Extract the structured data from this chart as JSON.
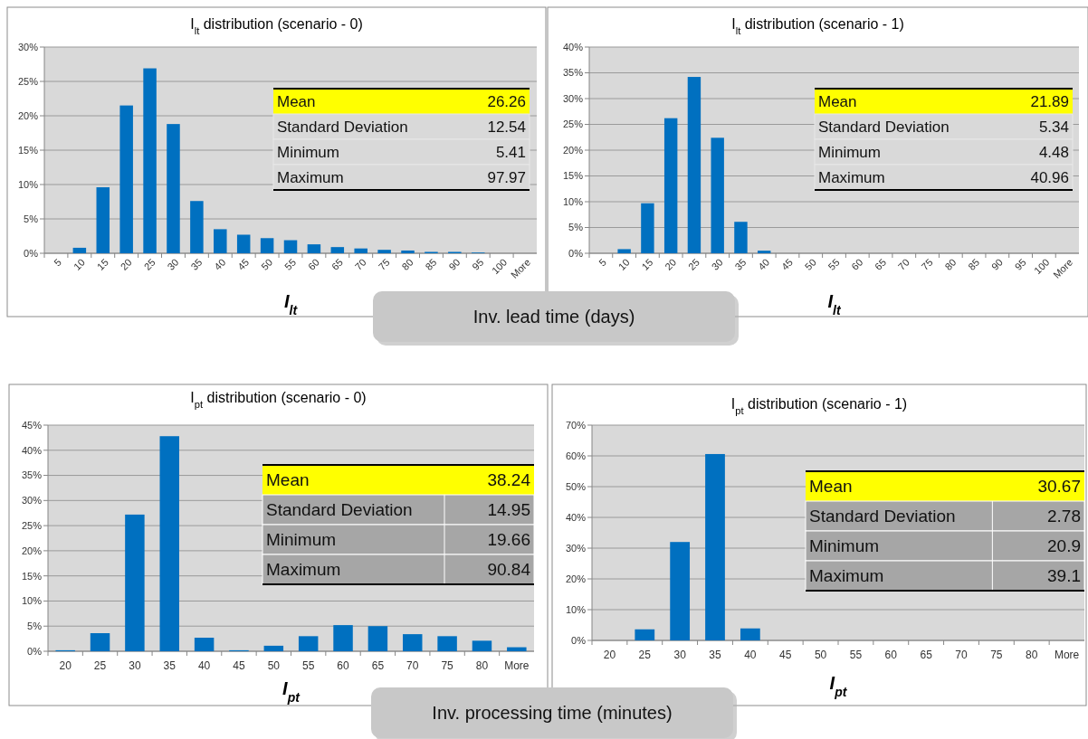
{
  "chart_data": [
    {
      "type": "bar",
      "title": "I$_{lt}$ distribution (scenario - 0)",
      "xlabel": "I$_{lt}$",
      "categories": [
        "5",
        "10",
        "15",
        "20",
        "25",
        "30",
        "35",
        "40",
        "45",
        "50",
        "55",
        "60",
        "65",
        "70",
        "75",
        "80",
        "85",
        "90",
        "95",
        "100",
        "More"
      ],
      "values": [
        0,
        0.8,
        9.6,
        21.5,
        26.9,
        18.8,
        7.6,
        3.5,
        2.7,
        2.2,
        1.9,
        1.3,
        0.9,
        0.7,
        0.5,
        0.4,
        0.2,
        0.2,
        0.1,
        0,
        0
      ],
      "color": "#0070c0",
      "ylim": [
        0,
        30
      ],
      "yticks": [
        {
          "value": 0,
          "label": "0%"
        },
        {
          "value": 5,
          "label": "5%"
        },
        {
          "value": 10,
          "label": "10%"
        },
        {
          "value": 15,
          "label": "15%"
        },
        {
          "value": 20,
          "label": "20%"
        },
        {
          "value": 25,
          "label": "25%"
        },
        {
          "value": 30,
          "label": "30%"
        }
      ],
      "grid": "y",
      "annotations": [
        "Mean",
        "26.26",
        "Standard Deviation",
        "12.54",
        "Minimum",
        "5.41",
        "Maximum",
        "97.97",
        "Inv. lead time (days)"
      ]
    },
    {
      "type": "bar",
      "title": "I$_{lt}$ distribution (scenario - 1)",
      "xlabel": "I$_{lt}$",
      "categories": [
        "5",
        "10",
        "15",
        "20",
        "25",
        "30",
        "35",
        "40",
        "45",
        "50",
        "55",
        "60",
        "65",
        "70",
        "75",
        "80",
        "85",
        "90",
        "95",
        "100",
        "More"
      ],
      "values": [
        0,
        0.8,
        9.7,
        26.2,
        34.2,
        22.4,
        6.1,
        0.5,
        0,
        0,
        0,
        0,
        0,
        0,
        0,
        0,
        0,
        0,
        0,
        0,
        0
      ],
      "color": "#0070c0",
      "ylim": [
        0,
        40
      ],
      "yticks": [
        {
          "value": 0,
          "label": "0%"
        },
        {
          "value": 5,
          "label": "5%"
        },
        {
          "value": 10,
          "label": "10%"
        },
        {
          "value": 15,
          "label": "15%"
        },
        {
          "value": 20,
          "label": "20%"
        },
        {
          "value": 25,
          "label": "25%"
        },
        {
          "value": 30,
          "label": "30%"
        },
        {
          "value": 35,
          "label": "35%"
        },
        {
          "value": 40,
          "label": "40%"
        }
      ],
      "grid": "y",
      "annotations": [
        "Mean",
        "21.89",
        "Standard Deviation",
        "5.34",
        "Minimum",
        "4.48",
        "Maximum",
        "40.96"
      ]
    },
    {
      "type": "bar",
      "title": "I$_{pt}$ distribution (scenario - 0)",
      "xlabel": "I$_{pt}$",
      "categories": [
        "20",
        "25",
        "30",
        "35",
        "40",
        "45",
        "50",
        "55",
        "60",
        "65",
        "70",
        "75",
        "80",
        "More"
      ],
      "values": [
        0.2,
        3.6,
        27.2,
        42.8,
        2.7,
        0.2,
        1.1,
        3.0,
        5.2,
        5.0,
        3.4,
        3.0,
        2.1,
        0.8
      ],
      "color": "#0070c0",
      "ylim": [
        0,
        45
      ],
      "yticks": [
        {
          "value": 0,
          "label": "0%"
        },
        {
          "value": 5,
          "label": "5%"
        },
        {
          "value": 10,
          "label": "10%"
        },
        {
          "value": 15,
          "label": "15%"
        },
        {
          "value": 20,
          "label": "20%"
        },
        {
          "value": 25,
          "label": "25%"
        },
        {
          "value": 30,
          "label": "30%"
        },
        {
          "value": 35,
          "label": "35%"
        },
        {
          "value": 40,
          "label": "40%"
        },
        {
          "value": 45,
          "label": "45%"
        }
      ],
      "grid": "y",
      "annotations": [
        "Mean",
        "38.24",
        "Standard Deviation",
        "14.95",
        "Minimum",
        "19.66",
        "Maximum",
        "90.84",
        "Inv. processing time (minutes)"
      ]
    },
    {
      "type": "bar",
      "title": "I$_{pt}$ distribution (scenario - 1)",
      "xlabel": "I$_{pt}$",
      "categories": [
        "20",
        "25",
        "30",
        "35",
        "40",
        "45",
        "50",
        "55",
        "60",
        "65",
        "70",
        "75",
        "80",
        "More"
      ],
      "values": [
        0,
        3.6,
        32,
        60.6,
        3.9,
        0,
        0,
        0,
        0,
        0,
        0,
        0,
        0,
        0
      ],
      "color": "#0070c0",
      "ylim": [
        0,
        70
      ],
      "yticks": [
        {
          "value": 0,
          "label": "0%"
        },
        {
          "value": 10,
          "label": "10%"
        },
        {
          "value": 20,
          "label": "20%"
        },
        {
          "value": 30,
          "label": "30%"
        },
        {
          "value": 40,
          "label": "40%"
        },
        {
          "value": 50,
          "label": "50%"
        },
        {
          "value": 60,
          "label": "60%"
        },
        {
          "value": 70,
          "label": "70%"
        }
      ],
      "grid": "y",
      "annotations": [
        "Mean",
        "30.67",
        "Standard Deviation",
        "2.78",
        "Minimum",
        "20.9",
        "Maximum",
        "39.1"
      ]
    }
  ]
}
